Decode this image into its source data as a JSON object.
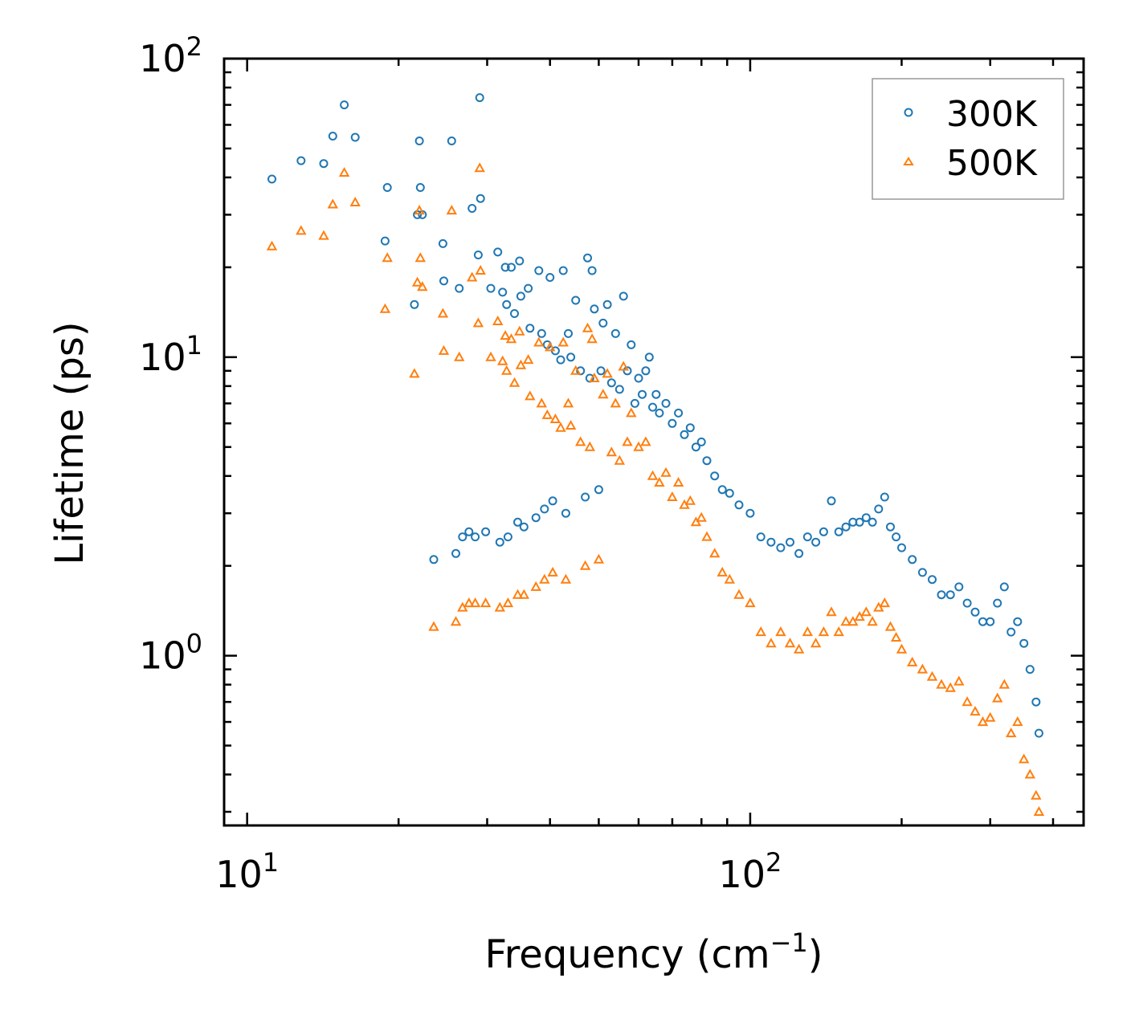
{
  "chart_data": {
    "type": "scatter",
    "title": "",
    "xlabel": "Frequency (cm",
    "xlabel_sup": "−1",
    "xlabel_tail": ")",
    "ylabel": "Lifetime (ps)",
    "xscale": "log",
    "yscale": "log",
    "xlim": [
      9,
      460
    ],
    "ylim": [
      0.27,
      100
    ],
    "grid": false,
    "legend_position": "top-right",
    "x_ticks": [
      {
        "value": 10,
        "base": "10",
        "exp": "1"
      },
      {
        "value": 100,
        "base": "10",
        "exp": "2"
      }
    ],
    "y_ticks": [
      {
        "value": 1,
        "base": "10",
        "exp": "0"
      },
      {
        "value": 10,
        "base": "10",
        "exp": "1"
      },
      {
        "value": 100,
        "base": "10",
        "exp": "2"
      }
    ],
    "series": [
      {
        "name": "300K",
        "marker": "circle",
        "color": "#1f77b4",
        "points": [
          [
            11.2,
            39.5
          ],
          [
            12.8,
            45.5
          ],
          [
            14.2,
            44.5
          ],
          [
            14.8,
            55
          ],
          [
            15.6,
            70
          ],
          [
            16.4,
            54.5
          ],
          [
            18.8,
            24.5
          ],
          [
            19,
            37
          ],
          [
            21.5,
            15
          ],
          [
            21.8,
            30
          ],
          [
            22,
            53
          ],
          [
            22.1,
            37
          ],
          [
            22.3,
            30
          ],
          [
            23.5,
            2.1
          ],
          [
            24.5,
            24
          ],
          [
            24.6,
            18
          ],
          [
            25.5,
            53
          ],
          [
            26,
            2.2
          ],
          [
            26.4,
            17
          ],
          [
            26.8,
            2.5
          ],
          [
            27.6,
            2.6
          ],
          [
            28,
            31.5
          ],
          [
            28.4,
            2.5
          ],
          [
            28.8,
            22
          ],
          [
            29,
            74
          ],
          [
            29.1,
            34
          ],
          [
            29.8,
            2.6
          ],
          [
            30.5,
            17
          ],
          [
            31.5,
            22.5
          ],
          [
            31.8,
            2.4
          ],
          [
            32.2,
            16.5
          ],
          [
            32.6,
            20
          ],
          [
            32.8,
            15
          ],
          [
            33,
            2.5
          ],
          [
            33.5,
            20
          ],
          [
            34,
            14
          ],
          [
            34.5,
            2.8
          ],
          [
            34.8,
            21
          ],
          [
            35,
            16
          ],
          [
            35.5,
            2.7
          ],
          [
            36.2,
            17
          ],
          [
            36.5,
            12.5
          ],
          [
            37.5,
            2.9
          ],
          [
            38,
            19.5
          ],
          [
            38.5,
            12
          ],
          [
            39,
            3.1
          ],
          [
            39.5,
            11
          ],
          [
            40,
            18.5
          ],
          [
            40.5,
            3.3
          ],
          [
            41,
            10.5
          ],
          [
            42,
            9.8
          ],
          [
            42.5,
            19.5
          ],
          [
            43,
            3
          ],
          [
            43.5,
            12
          ],
          [
            44,
            10
          ],
          [
            45,
            15.5
          ],
          [
            46,
            9
          ],
          [
            47,
            3.4
          ],
          [
            47.5,
            21.5
          ],
          [
            48,
            8.5
          ],
          [
            48.5,
            19.5
          ],
          [
            49,
            14.5
          ],
          [
            50,
            3.6
          ],
          [
            50.5,
            9
          ],
          [
            51,
            13
          ],
          [
            52,
            15
          ],
          [
            53,
            8.2
          ],
          [
            54,
            12
          ],
          [
            55,
            7.8
          ],
          [
            56,
            16
          ],
          [
            57,
            9
          ],
          [
            58,
            11
          ],
          [
            59,
            7
          ],
          [
            60,
            8.5
          ],
          [
            61,
            7.5
          ],
          [
            62,
            9
          ],
          [
            63,
            10
          ],
          [
            64,
            6.8
          ],
          [
            65,
            7.5
          ],
          [
            66,
            6.5
          ],
          [
            68,
            7
          ],
          [
            70,
            6
          ],
          [
            72,
            6.5
          ],
          [
            74,
            5.5
          ],
          [
            76,
            5.8
          ],
          [
            78,
            5
          ],
          [
            80,
            5.2
          ],
          [
            82,
            4.5
          ],
          [
            85,
            4
          ],
          [
            88,
            3.6
          ],
          [
            91,
            3.5
          ],
          [
            95,
            3.2
          ],
          [
            100,
            3
          ],
          [
            105,
            2.5
          ],
          [
            110,
            2.4
          ],
          [
            115,
            2.3
          ],
          [
            120,
            2.4
          ],
          [
            125,
            2.2
          ],
          [
            130,
            2.5
          ],
          [
            135,
            2.4
          ],
          [
            140,
            2.6
          ],
          [
            145,
            3.3
          ],
          [
            150,
            2.6
          ],
          [
            155,
            2.7
          ],
          [
            160,
            2.8
          ],
          [
            165,
            2.8
          ],
          [
            170,
            2.9
          ],
          [
            175,
            2.8
          ],
          [
            180,
            3.1
          ],
          [
            185,
            3.4
          ],
          [
            190,
            2.7
          ],
          [
            195,
            2.5
          ],
          [
            200,
            2.3
          ],
          [
            210,
            2.1
          ],
          [
            220,
            1.9
          ],
          [
            230,
            1.8
          ],
          [
            240,
            1.6
          ],
          [
            250,
            1.6
          ],
          [
            260,
            1.7
          ],
          [
            270,
            1.5
          ],
          [
            280,
            1.4
          ],
          [
            290,
            1.3
          ],
          [
            300,
            1.3
          ],
          [
            310,
            1.5
          ],
          [
            320,
            1.7
          ],
          [
            330,
            1.2
          ],
          [
            340,
            1.3
          ],
          [
            350,
            1.1
          ],
          [
            360,
            0.9
          ],
          [
            370,
            0.7
          ],
          [
            375,
            0.55
          ]
        ]
      },
      {
        "name": "500K",
        "marker": "triangle",
        "color": "#ff7f0e",
        "points": [
          [
            11.2,
            23.5
          ],
          [
            12.8,
            26.5
          ],
          [
            14.2,
            25.5
          ],
          [
            14.8,
            32.5
          ],
          [
            15.6,
            41.5
          ],
          [
            16.4,
            33
          ],
          [
            18.8,
            14.5
          ],
          [
            19,
            21.5
          ],
          [
            21.5,
            8.8
          ],
          [
            21.8,
            17.8
          ],
          [
            22,
            31
          ],
          [
            22.1,
            21.5
          ],
          [
            22.3,
            17.2
          ],
          [
            23.5,
            1.25
          ],
          [
            24.5,
            14
          ],
          [
            24.6,
            10.5
          ],
          [
            25.5,
            31
          ],
          [
            26,
            1.3
          ],
          [
            26.4,
            10
          ],
          [
            26.8,
            1.45
          ],
          [
            27.6,
            1.5
          ],
          [
            28,
            18.5
          ],
          [
            28.4,
            1.5
          ],
          [
            28.8,
            13
          ],
          [
            29,
            43
          ],
          [
            29.1,
            19.5
          ],
          [
            29.8,
            1.5
          ],
          [
            30.5,
            10
          ],
          [
            31.5,
            13.2
          ],
          [
            31.8,
            1.45
          ],
          [
            32.2,
            9.7
          ],
          [
            32.6,
            11.8
          ],
          [
            32.8,
            9
          ],
          [
            33,
            1.5
          ],
          [
            33.5,
            11.5
          ],
          [
            34,
            8.2
          ],
          [
            34.5,
            1.6
          ],
          [
            34.8,
            12.2
          ],
          [
            35,
            9.4
          ],
          [
            35.5,
            1.6
          ],
          [
            36.2,
            9.8
          ],
          [
            36.5,
            7.4
          ],
          [
            37.5,
            1.7
          ],
          [
            38,
            11.2
          ],
          [
            38.5,
            7
          ],
          [
            39,
            1.8
          ],
          [
            39.5,
            6.4
          ],
          [
            40,
            10.8
          ],
          [
            40.5,
            1.9
          ],
          [
            41,
            6.2
          ],
          [
            42,
            5.8
          ],
          [
            42.5,
            11.2
          ],
          [
            43,
            1.8
          ],
          [
            43.5,
            7
          ],
          [
            44,
            5.9
          ],
          [
            45,
            9
          ],
          [
            46,
            5.2
          ],
          [
            47,
            2
          ],
          [
            47.5,
            12.5
          ],
          [
            48,
            5
          ],
          [
            48.5,
            11.5
          ],
          [
            49,
            8.5
          ],
          [
            50,
            2.1
          ],
          [
            51,
            7.5
          ],
          [
            52,
            8.8
          ],
          [
            53,
            4.8
          ],
          [
            54,
            7
          ],
          [
            55,
            4.5
          ],
          [
            56,
            9.3
          ],
          [
            57,
            5.2
          ],
          [
            58,
            6.5
          ],
          [
            60,
            5
          ],
          [
            62,
            5.2
          ],
          [
            64,
            4
          ],
          [
            66,
            3.8
          ],
          [
            68,
            4.1
          ],
          [
            70,
            3.4
          ],
          [
            72,
            3.8
          ],
          [
            74,
            3.2
          ],
          [
            76,
            3.3
          ],
          [
            78,
            2.8
          ],
          [
            80,
            2.9
          ],
          [
            82,
            2.5
          ],
          [
            85,
            2.2
          ],
          [
            88,
            1.9
          ],
          [
            91,
            1.8
          ],
          [
            95,
            1.6
          ],
          [
            100,
            1.5
          ],
          [
            105,
            1.2
          ],
          [
            110,
            1.1
          ],
          [
            115,
            1.2
          ],
          [
            120,
            1.1
          ],
          [
            125,
            1.05
          ],
          [
            130,
            1.2
          ],
          [
            135,
            1.1
          ],
          [
            140,
            1.2
          ],
          [
            145,
            1.4
          ],
          [
            150,
            1.2
          ],
          [
            155,
            1.3
          ],
          [
            160,
            1.3
          ],
          [
            165,
            1.35
          ],
          [
            170,
            1.4
          ],
          [
            175,
            1.3
          ],
          [
            180,
            1.45
          ],
          [
            185,
            1.5
          ],
          [
            190,
            1.25
          ],
          [
            195,
            1.15
          ],
          [
            200,
            1.05
          ],
          [
            210,
            0.95
          ],
          [
            220,
            0.9
          ],
          [
            230,
            0.85
          ],
          [
            240,
            0.8
          ],
          [
            250,
            0.78
          ],
          [
            260,
            0.82
          ],
          [
            270,
            0.7
          ],
          [
            280,
            0.65
          ],
          [
            290,
            0.6
          ],
          [
            300,
            0.62
          ],
          [
            310,
            0.72
          ],
          [
            320,
            0.8
          ],
          [
            330,
            0.55
          ],
          [
            340,
            0.6
          ],
          [
            350,
            0.45
          ],
          [
            360,
            0.4
          ],
          [
            370,
            0.34
          ],
          [
            375,
            0.3
          ]
        ]
      }
    ]
  }
}
